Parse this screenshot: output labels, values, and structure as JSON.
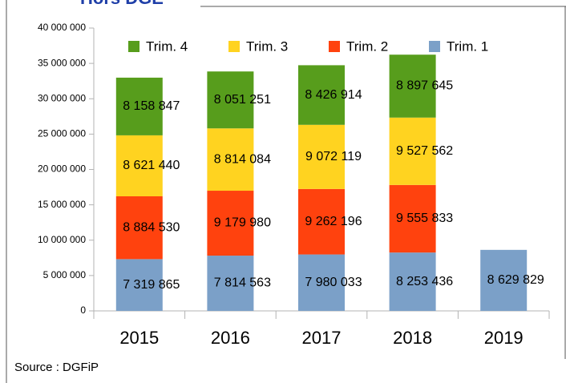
{
  "chart_data": {
    "type": "stacked_bar",
    "title": "Hors DGE",
    "source": "Source : DGFiP",
    "categories": [
      "2015",
      "2016",
      "2017",
      "2018",
      "2019"
    ],
    "series": [
      {
        "name": "Trim. 1",
        "color": "#7ba0c8",
        "values": [
          7319865,
          7814563,
          7980033,
          8253436,
          8629829
        ],
        "value_labels": [
          "7 319 865",
          "7 814 563",
          "7 980 033",
          "8 253 436",
          "8 629 829"
        ]
      },
      {
        "name": "Trim. 2",
        "color": "#ff420e",
        "values": [
          8884530,
          9179980,
          9262196,
          9555833,
          null
        ],
        "value_labels": [
          "8 884 530",
          "9 179 980",
          "9 262 196",
          "9 555 833",
          null
        ]
      },
      {
        "name": "Trim. 3",
        "color": "#ffd320",
        "values": [
          8621440,
          8814084,
          9072119,
          9527562,
          null
        ],
        "value_labels": [
          "8 621 440",
          "8 814 084",
          "9 072 119",
          "9 527 562",
          null
        ]
      },
      {
        "name": "Trim. 4",
        "color": "#579d1c",
        "values": [
          8158847,
          8051251,
          8426914,
          8897645,
          null
        ],
        "value_labels": [
          "8 158 847",
          "8 051 251",
          "8 426 914",
          "8 897 645",
          null
        ]
      }
    ],
    "ylim": [
      0,
      40000000
    ],
    "yticks": [
      {
        "value": 0,
        "label": "0"
      },
      {
        "value": 5000000,
        "label": "5 000 000"
      },
      {
        "value": 10000000,
        "label": "10 000 000"
      },
      {
        "value": 15000000,
        "label": "15 000 000"
      },
      {
        "value": 20000000,
        "label": "20 000 000"
      },
      {
        "value": 25000000,
        "label": "25 000 000"
      },
      {
        "value": 30000000,
        "label": "30 000 000"
      },
      {
        "value": 35000000,
        "label": "35 000 000"
      },
      {
        "value": 40000000,
        "label": "40 000 000"
      }
    ],
    "legend": "top"
  }
}
